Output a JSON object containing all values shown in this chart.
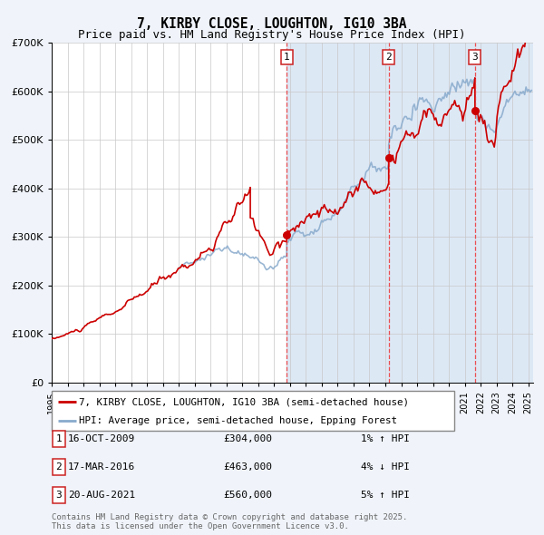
{
  "title": "7, KIRBY CLOSE, LOUGHTON, IG10 3BA",
  "subtitle": "Price paid vs. HM Land Registry's House Price Index (HPI)",
  "bg_color": "#f0f4fa",
  "plot_bg_color": "#ffffff",
  "grid_color": "#c8c8c8",
  "red_line_color": "#cc0000",
  "blue_line_color": "#88aacc",
  "shade_color": "#dde8f5",
  "dashed_line_color": "#ee3333",
  "sale_dot_color": "#cc0000",
  "table_border_color": "#cc2222",
  "legend_border_color": "#888888",
  "sale_events": [
    {
      "label": "1",
      "date_num": 2009.79,
      "price": 304000,
      "date_str": "16-OCT-2009",
      "price_str": "£304,000",
      "hpi_str": "1% ↑ HPI"
    },
    {
      "label": "2",
      "date_num": 2016.21,
      "price": 463000,
      "date_str": "17-MAR-2016",
      "price_str": "£463,000",
      "hpi_str": "4% ↓ HPI"
    },
    {
      "label": "3",
      "date_num": 2021.64,
      "price": 560000,
      "date_str": "20-AUG-2021",
      "price_str": "£560,000",
      "hpi_str": "5% ↑ HPI"
    }
  ],
  "xmin": 1995,
  "xmax": 2025.3,
  "ymin": 0,
  "ymax": 700000,
  "yticks": [
    0,
    100000,
    200000,
    300000,
    400000,
    500000,
    600000,
    700000
  ],
  "ytick_labels": [
    "£0",
    "£100K",
    "£200K",
    "£300K",
    "£400K",
    "£500K",
    "£600K",
    "£700K"
  ],
  "xticks": [
    1995,
    1996,
    1997,
    1998,
    1999,
    2000,
    2001,
    2002,
    2003,
    2004,
    2005,
    2006,
    2007,
    2008,
    2009,
    2010,
    2011,
    2012,
    2013,
    2014,
    2015,
    2016,
    2017,
    2018,
    2019,
    2020,
    2021,
    2022,
    2023,
    2024,
    2025
  ],
  "shade_start": 2009.79,
  "shade_end": 2025.3,
  "hpi_blue_start": 2003.0,
  "footer": "Contains HM Land Registry data © Crown copyright and database right 2025.\nThis data is licensed under the Open Government Licence v3.0.",
  "legend_line1": "7, KIRBY CLOSE, LOUGHTON, IG10 3BA (semi-detached house)",
  "legend_line2": "HPI: Average price, semi-detached house, Epping Forest"
}
